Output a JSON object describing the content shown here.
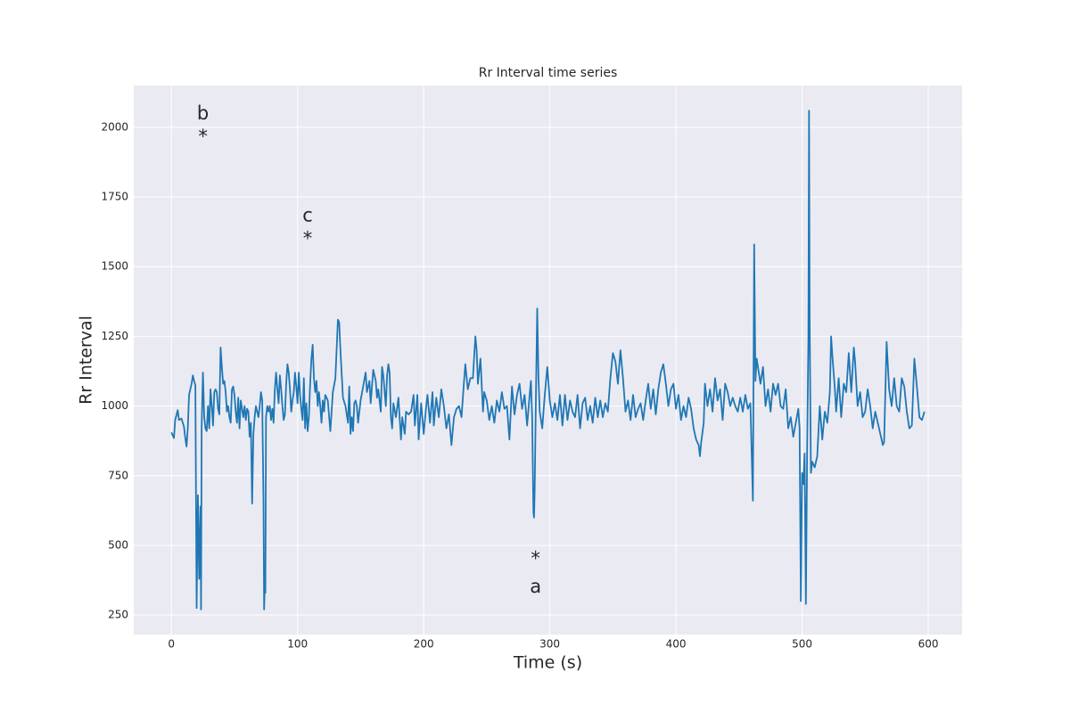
{
  "chart_data": {
    "type": "line",
    "title": "Rr Interval time series",
    "x_label": "Time (s)",
    "y_label": "Rr Interval",
    "xlim": [
      -29.85,
      626.85
    ],
    "ylim": [
      180,
      2150
    ],
    "xticks": [
      0,
      100,
      200,
      300,
      400,
      500,
      600
    ],
    "yticks": [
      250,
      500,
      750,
      1000,
      1250,
      1500,
      1750,
      2000
    ],
    "grid": true,
    "background": "#eaeaf2",
    "series": [
      {
        "color": "#1f77b4",
        "x": [
          0,
          2,
          3,
          5,
          6,
          8,
          10,
          11,
          12,
          13,
          14,
          16,
          17,
          18,
          19,
          20,
          21,
          22,
          23,
          23.5,
          24,
          25,
          26,
          27,
          28,
          29,
          30,
          31,
          32,
          33,
          34,
          35,
          36,
          37,
          38,
          39,
          40,
          41,
          42,
          43,
          44,
          45,
          46,
          47,
          48,
          49,
          50,
          51,
          52,
          53,
          54,
          55,
          56,
          57,
          58,
          59,
          60,
          61,
          62,
          63,
          64,
          65,
          66,
          67,
          68,
          69,
          70,
          71,
          72,
          73,
          73.5,
          74,
          74.5,
          75,
          76,
          77,
          78,
          79,
          80,
          81,
          82,
          83,
          84,
          85,
          86,
          87,
          88,
          89,
          90,
          91,
          92,
          93,
          94,
          95,
          96,
          97,
          98,
          99,
          100,
          101,
          102,
          103,
          104,
          105,
          106,
          107,
          108,
          109,
          110,
          111,
          112,
          113,
          114,
          115,
          116,
          117,
          118,
          119,
          120,
          121,
          122,
          124,
          126,
          128,
          130,
          132,
          133,
          134,
          136,
          138,
          140,
          141,
          142,
          143,
          144,
          145,
          146,
          147,
          148,
          150,
          152,
          154,
          155,
          157,
          158,
          160,
          162,
          163,
          164,
          166,
          167,
          168,
          170,
          171,
          172,
          173,
          174,
          175,
          176,
          178,
          180,
          182,
          183,
          185,
          186,
          188,
          190,
          192,
          193,
          195,
          196,
          198,
          200,
          202,
          203,
          205,
          207,
          208,
          210,
          212,
          214,
          216,
          218,
          220,
          222,
          224,
          226,
          228,
          230,
          232,
          233,
          235,
          237,
          239,
          241,
          242,
          243,
          245,
          247,
          248,
          250,
          252,
          254,
          256,
          258,
          260,
          262,
          264,
          266,
          268,
          270,
          272,
          274,
          276,
          278,
          280,
          282,
          284,
          285,
          286,
          287,
          287.5,
          288,
          289,
          290,
          291,
          292,
          294,
          296,
          298,
          300,
          302,
          304,
          306,
          308,
          310,
          312,
          314,
          316,
          318,
          320,
          322,
          324,
          326,
          328,
          330,
          332,
          334,
          336,
          338,
          340,
          342,
          344,
          346,
          348,
          350,
          352,
          354,
          356,
          358,
          360,
          362,
          364,
          366,
          368,
          370,
          372,
          374,
          376,
          378,
          380,
          382,
          384,
          386,
          388,
          390,
          392,
          394,
          396,
          398,
          400,
          402,
          404,
          406,
          408,
          410,
          412,
          414,
          416,
          418,
          419,
          420,
          422,
          423,
          425,
          427,
          429,
          431,
          433,
          435,
          437,
          439,
          441,
          443,
          445,
          447,
          449,
          451,
          453,
          455,
          457,
          459,
          461,
          462,
          463,
          464,
          465,
          467,
          469,
          471,
          473,
          475,
          477,
          479,
          481,
          483,
          485,
          487,
          489,
          491,
          493,
          495,
          497,
          498,
          499,
          500,
          501,
          502,
          503,
          504,
          505,
          505.5,
          506,
          507,
          508,
          510,
          512,
          514,
          516,
          518,
          520,
          522,
          523,
          524,
          526,
          527,
          529,
          531,
          533,
          535,
          537,
          539,
          541,
          542,
          544,
          546,
          548,
          550,
          552,
          554,
          556,
          558,
          560,
          562,
          564,
          565,
          567,
          569,
          571,
          573,
          575,
          577,
          579,
          581,
          583,
          585,
          587,
          589,
          591,
          593,
          595,
          597
        ],
        "values": [
          905,
          885,
          950,
          985,
          950,
          955,
          925,
          885,
          855,
          920,
          1040,
          1080,
          1110,
          1090,
          1075,
          275,
          680,
          380,
          640,
          270,
          930,
          1120,
          960,
          920,
          910,
          1000,
          920,
          1060,
          1000,
          930,
          1050,
          1060,
          1050,
          990,
          970,
          1210,
          1140,
          1080,
          1090,
          1050,
          980,
          1000,
          960,
          940,
          1060,
          1070,
          1040,
          980,
          940,
          1030,
          920,
          1020,
          990,
          960,
          1000,
          950,
          990,
          980,
          890,
          940,
          650,
          900,
          960,
          1000,
          980,
          960,
          1000,
          1050,
          1020,
          660,
          270,
          350,
          330,
          960,
          1000,
          980,
          1000,
          950,
          990,
          940,
          1060,
          1120,
          1060,
          1010,
          1110,
          1060,
          1000,
          950,
          970,
          1080,
          1150,
          1120,
          1060,
          980,
          1020,
          1050,
          1120,
          1070,
          1010,
          1120,
          1040,
          990,
          950,
          1100,
          920,
          1010,
          910,
          960,
          1080,
          1170,
          1220,
          1100,
          1050,
          1090,
          1000,
          1050,
          1000,
          940,
          1020,
          980,
          1040,
          1020,
          910,
          1050,
          1100,
          1310,
          1300,
          1200,
          1030,
          1000,
          940,
          1070,
          900,
          960,
          910,
          1010,
          1020,
          1000,
          940,
          1020,
          1070,
          1120,
          1050,
          1090,
          1010,
          1130,
          1090,
          1030,
          1060,
          980,
          1140,
          1110,
          1000,
          1110,
          1150,
          1120,
          960,
          920,
          1010,
          960,
          1030,
          880,
          960,
          900,
          980,
          970,
          980,
          1040,
          930,
          1040,
          880,
          1010,
          900,
          1000,
          1040,
          940,
          1050,
          930,
          1030,
          960,
          1060,
          1000,
          920,
          970,
          860,
          960,
          990,
          1000,
          960,
          1090,
          1150,
          1060,
          1100,
          1100,
          1250,
          1200,
          1080,
          1170,
          980,
          1050,
          1020,
          950,
          1000,
          940,
          1020,
          980,
          1050,
          990,
          1000,
          880,
          1070,
          970,
          1040,
          1080,
          990,
          1040,
          930,
          1040,
          1090,
          960,
          620,
          600,
          700,
          1040,
          1350,
          1100,
          980,
          920,
          1040,
          1140,
          1020,
          960,
          1010,
          950,
          1040,
          930,
          1040,
          950,
          1020,
          980,
          960,
          1040,
          920,
          1010,
          1030,
          950,
          1000,
          940,
          1030,
          960,
          1020,
          960,
          1010,
          980,
          1100,
          1190,
          1160,
          1080,
          1200,
          1100,
          980,
          1020,
          950,
          1040,
          960,
          990,
          1010,
          950,
          1020,
          1080,
          990,
          1060,
          970,
          1060,
          1120,
          1150,
          1080,
          1000,
          1060,
          1080,
          990,
          1040,
          950,
          1000,
          960,
          1030,
          990,
          920,
          880,
          860,
          820,
          870,
          940,
          1080,
          1000,
          1060,
          980,
          1100,
          1020,
          1060,
          950,
          1080,
          1050,
          1000,
          1030,
          1000,
          980,
          1030,
          980,
          1040,
          990,
          1010,
          660,
          1580,
          1090,
          1170,
          1140,
          1080,
          1140,
          1000,
          1060,
          980,
          1080,
          1040,
          1080,
          1000,
          990,
          1060,
          920,
          960,
          890,
          940,
          990,
          920,
          300,
          760,
          720,
          830,
          290,
          840,
          1250,
          2060,
          1300,
          760,
          800,
          780,
          820,
          1000,
          880,
          980,
          940,
          1050,
          1250,
          1180,
          1060,
          980,
          1100,
          960,
          1080,
          1050,
          1190,
          1050,
          1210,
          1160,
          1000,
          1050,
          960,
          980,
          1060,
          1000,
          920,
          980,
          940,
          900,
          860,
          870,
          1230,
          1060,
          1000,
          1100,
          1000,
          980,
          1100,
          1070,
          980,
          920,
          930,
          1170,
          1070,
          960,
          950,
          980
        ]
      }
    ],
    "annotations": [
      {
        "label": "b",
        "x": 25,
        "y": 2048
      },
      {
        "label": "*",
        "x": 25,
        "y": 1965
      },
      {
        "label": "c",
        "x": 108,
        "y": 1681
      },
      {
        "label": "*",
        "x": 108,
        "y": 1598
      },
      {
        "label": "*",
        "x": 288.7,
        "y": 451
      },
      {
        "label": "a",
        "x": 288.7,
        "y": 349
      }
    ]
  }
}
